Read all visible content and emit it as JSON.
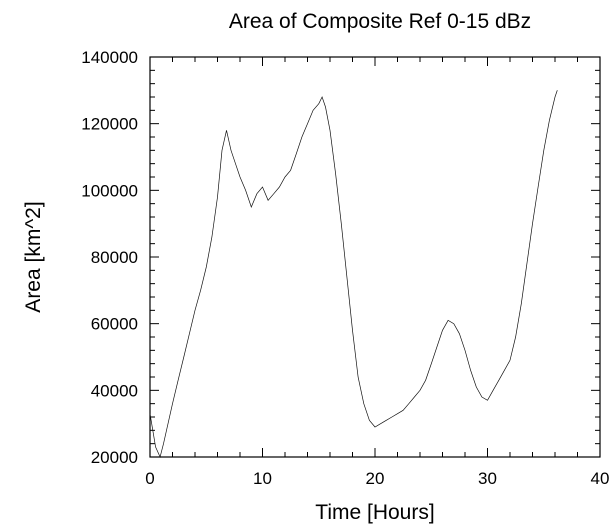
{
  "chart_data": {
    "type": "line",
    "title": "Area of Composite Ref 0-15 dBz",
    "xlabel": "Time [Hours]",
    "ylabel": "Area [km^2]",
    "xlim": [
      0,
      40
    ],
    "ylim": [
      20000,
      140000
    ],
    "xticks": [
      0,
      10,
      20,
      30,
      40
    ],
    "xtick_labels": [
      "0",
      "10",
      "20",
      "30",
      "40"
    ],
    "yticks": [
      20000,
      40000,
      60000,
      80000,
      100000,
      120000,
      140000
    ],
    "ytick_labels": [
      "20000",
      "40000",
      "60000",
      "80000",
      "100000",
      "120000",
      "140000"
    ],
    "grid": false,
    "series": [
      {
        "color": "#111111",
        "x": [
          0,
          0.5,
          0.9,
          1.2,
          1.6,
          2.0,
          2.5,
          3.0,
          3.5,
          4.0,
          4.5,
          5.0,
          5.5,
          6.0,
          6.4,
          6.8,
          7.2,
          7.6,
          8.0,
          8.5,
          9.0,
          9.5,
          10.0,
          10.5,
          11.0,
          11.5,
          12.0,
          12.5,
          13.0,
          13.5,
          14.0,
          14.5,
          15.0,
          15.3,
          15.6,
          16.0,
          16.5,
          17.0,
          17.5,
          18.0,
          18.5,
          19.0,
          19.5,
          20.0,
          20.5,
          21.0,
          21.5,
          22.0,
          22.5,
          23.0,
          23.5,
          24.0,
          24.5,
          25.0,
          25.5,
          26.0,
          26.5,
          27.0,
          27.5,
          28.0,
          28.5,
          29.0,
          29.5,
          30.0,
          30.5,
          31.0,
          31.5,
          32.0,
          32.5,
          33.0,
          33.5,
          34.0,
          34.5,
          35.0,
          35.5,
          36.0,
          36.2
        ],
        "y": [
          33000,
          23000,
          20000,
          24000,
          30000,
          36000,
          43000,
          50000,
          57000,
          64000,
          70000,
          77000,
          86000,
          98000,
          112000,
          118000,
          112000,
          108000,
          104000,
          100000,
          95000,
          99000,
          101000,
          97000,
          99000,
          101000,
          104000,
          106000,
          111000,
          116000,
          120000,
          124000,
          126000,
          128000,
          125000,
          118000,
          105000,
          90000,
          74000,
          58000,
          44000,
          36000,
          31000,
          29000,
          30000,
          31000,
          32000,
          33000,
          34000,
          36000,
          38000,
          40000,
          43000,
          48000,
          53000,
          58000,
          61000,
          60000,
          57000,
          52000,
          46000,
          41000,
          38000,
          37000,
          40000,
          43000,
          46000,
          49000,
          56000,
          66000,
          78000,
          90000,
          101000,
          112000,
          121000,
          128000,
          130000
        ]
      }
    ]
  }
}
